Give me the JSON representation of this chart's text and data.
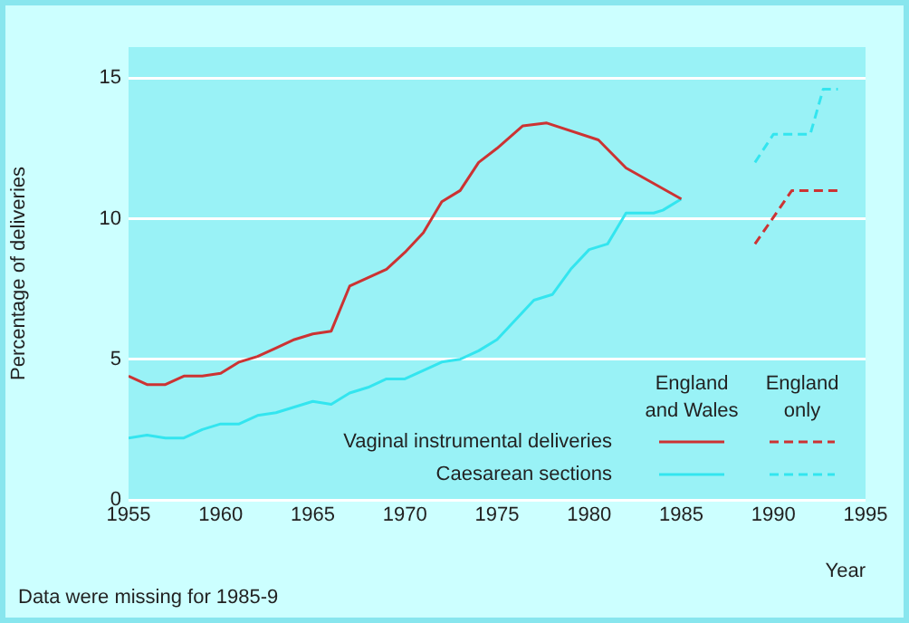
{
  "chart_data": {
    "type": "line",
    "ylabel": "Percentage of deliveries",
    "xlabel": "Year",
    "xlim": [
      1955,
      1995
    ],
    "xticks": [
      1955,
      1960,
      1965,
      1970,
      1975,
      1980,
      1985,
      1990,
      1995
    ],
    "ylim": [
      0,
      16.1
    ],
    "yticks": [
      0,
      5,
      10,
      15
    ],
    "grid": "y",
    "legend": "bottom right",
    "marker": "none",
    "annotations": [
      "England and Wales",
      "England only",
      "Data were missing for 1985-9"
    ],
    "series": [
      {
        "name": "Vaginal instrumental deliveries",
        "color": "#cc3333",
        "line_style": "solid",
        "x": [
          1955,
          1956,
          1957,
          1958,
          1959,
          1960,
          1961,
          1962,
          1963,
          1964,
          1965,
          1966,
          1967,
          1968,
          1969,
          1970,
          1971,
          1972,
          1973,
          1974,
          1975,
          1976.4,
          1977.7,
          1980.5,
          1982,
          1985
        ],
        "values": [
          4.4,
          4.1,
          4.1,
          4.4,
          4.4,
          4.5,
          4.9,
          5.1,
          5.4,
          5.7,
          5.9,
          6.0,
          7.6,
          7.9,
          8.2,
          8.8,
          9.5,
          10.6,
          11.0,
          12.0,
          12.5,
          13.3,
          13.4,
          12.8,
          11.8,
          10.7
        ]
      },
      {
        "name": "Caesarean sections",
        "color": "#33e5ef",
        "line_style": "solid",
        "x": [
          1955,
          1956,
          1957,
          1958,
          1959,
          1960,
          1961,
          1962,
          1963,
          1964,
          1965,
          1966,
          1967,
          1968,
          1969,
          1970,
          1971,
          1972,
          1973,
          1974,
          1975,
          1976,
          1977,
          1978,
          1979,
          1980,
          1981,
          1982,
          1983.5,
          1984,
          1985
        ],
        "values": [
          2.2,
          2.3,
          2.2,
          2.2,
          2.5,
          2.7,
          2.7,
          3.0,
          3.1,
          3.3,
          3.5,
          3.4,
          3.8,
          4.0,
          4.3,
          4.3,
          4.6,
          4.9,
          5.0,
          5.3,
          5.7,
          6.4,
          7.1,
          7.3,
          8.2,
          8.9,
          9.1,
          10.2,
          10.2,
          10.3,
          10.7
        ]
      },
      {
        "color": "#cc3333",
        "line_style": "dashed",
        "x": [
          1989,
          1991,
          1993.5
        ],
        "values": [
          9.1,
          11.0,
          11.0
        ]
      },
      {
        "color": "#33e5ef",
        "line_style": "dashed",
        "x": [
          1989,
          1990,
          1992,
          1992.7,
          1993.5
        ],
        "values": [
          12.0,
          13.0,
          13.0,
          14.6,
          14.6
        ]
      }
    ]
  }
}
